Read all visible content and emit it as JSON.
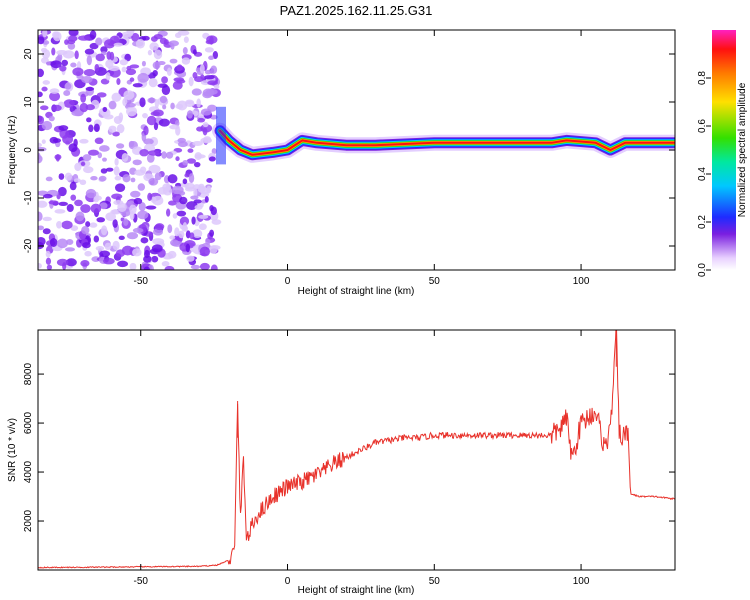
{
  "title": "PAZ1.2025.162.11.25.G31",
  "colors": {
    "snr_line": "#e8322b",
    "scatter_purple": "#7a1fe0",
    "axis": "#000000"
  },
  "chart_data": [
    {
      "type": "heatmap",
      "title": "PAZ1.2025.162.11.25.G31",
      "xlabel": "Height of straight line (km)",
      "ylabel": "Frequency (Hz)",
      "xlim": [
        -85,
        132
      ],
      "ylim": [
        -25,
        25
      ],
      "x_ticks": [
        -50,
        0,
        50,
        100
      ],
      "y_ticks": [
        -20,
        -10,
        0,
        10,
        20
      ],
      "colorbar": {
        "label": "Normalized spectral amplitude",
        "range": [
          0,
          1
        ],
        "ticks": [
          0.0,
          0.2,
          0.4,
          0.6,
          0.8
        ],
        "tick_labels": [
          "0.0",
          "0.2",
          "0.4",
          "0.6",
          "0.8"
        ]
      },
      "noise_region_x": [
        -85,
        -24
      ],
      "ridge_frequency_trace": [
        {
          "x": -23,
          "y": 4
        },
        {
          "x": -20,
          "y": 2
        },
        {
          "x": -16,
          "y": 0
        },
        {
          "x": -12,
          "y": -1
        },
        {
          "x": -5,
          "y": -0.5
        },
        {
          "x": 0,
          "y": 0
        },
        {
          "x": 5,
          "y": 2
        },
        {
          "x": 10,
          "y": 1.5
        },
        {
          "x": 20,
          "y": 1
        },
        {
          "x": 30,
          "y": 1
        },
        {
          "x": 50,
          "y": 1.5
        },
        {
          "x": 70,
          "y": 1.5
        },
        {
          "x": 90,
          "y": 1.5
        },
        {
          "x": 95,
          "y": 2
        },
        {
          "x": 105,
          "y": 1.5
        },
        {
          "x": 110,
          "y": 0
        },
        {
          "x": 115,
          "y": 1.5
        },
        {
          "x": 132,
          "y": 1.5
        }
      ]
    },
    {
      "type": "line",
      "title": "",
      "xlabel": "Height of straight line (km)",
      "ylabel": "SNR (10 * v/v)",
      "xlim": [
        -85,
        132
      ],
      "ylim": [
        0,
        9800
      ],
      "x_ticks": [
        -50,
        0,
        50,
        100
      ],
      "y_ticks": [
        2000,
        4000,
        6000,
        8000
      ],
      "series": [
        {
          "points": [
            [
              -85,
              100
            ],
            [
              -60,
              120
            ],
            [
              -40,
              140
            ],
            [
              -30,
              150
            ],
            [
              -24,
              200
            ],
            [
              -20,
              400
            ],
            [
              -18,
              800
            ],
            [
              -17,
              6900
            ],
            [
              -16,
              2000
            ],
            [
              -15,
              4700
            ],
            [
              -14,
              1200
            ],
            [
              -12,
              1800
            ],
            [
              -10,
              2300
            ],
            [
              -5,
              3000
            ],
            [
              0,
              3400
            ],
            [
              5,
              3600
            ],
            [
              10,
              3900
            ],
            [
              12,
              4000
            ],
            [
              15,
              4300
            ],
            [
              20,
              4600
            ],
            [
              25,
              4900
            ],
            [
              30,
              5200
            ],
            [
              35,
              5300
            ],
            [
              40,
              5400
            ],
            [
              45,
              5400
            ],
            [
              50,
              5500
            ],
            [
              60,
              5500
            ],
            [
              70,
              5500
            ],
            [
              80,
              5500
            ],
            [
              90,
              5500
            ],
            [
              93,
              5800
            ],
            [
              95,
              6200
            ],
            [
              97,
              4500
            ],
            [
              100,
              6000
            ],
            [
              105,
              6500
            ],
            [
              108,
              5000
            ],
            [
              110,
              5700
            ],
            [
              112,
              9800
            ],
            [
              113,
              5500
            ],
            [
              116,
              5500
            ],
            [
              117,
              3100
            ],
            [
              120,
              3000
            ],
            [
              125,
              3000
            ],
            [
              132,
              2900
            ]
          ]
        }
      ]
    }
  ]
}
